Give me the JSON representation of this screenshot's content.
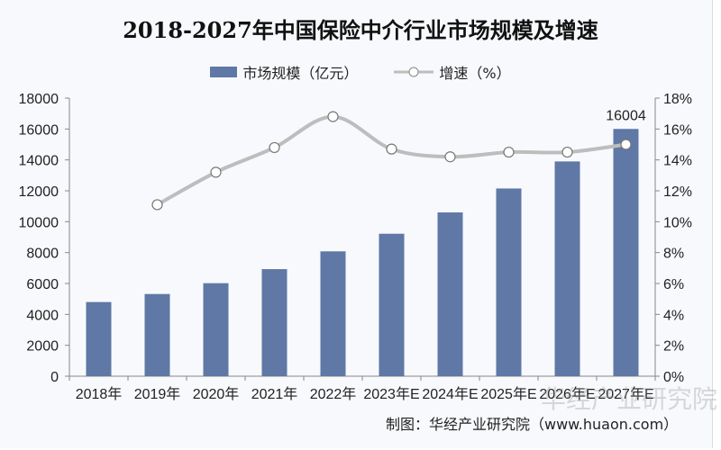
{
  "chart_data": {
    "type": "bar+line",
    "title": "2018-2027年中国保险中介行业市场规模及增速",
    "categories": [
      "2018年",
      "2019年",
      "2020年",
      "2021年",
      "2022年",
      "2023年E",
      "2024年E",
      "2025年E",
      "2026年E",
      "2027年E"
    ],
    "series": [
      {
        "name": "市场规模（亿元）",
        "type": "bar",
        "axis": "left",
        "color": "#5f78a5",
        "values": [
          4800,
          5320,
          6020,
          6930,
          8080,
          9220,
          10600,
          12150,
          13900,
          16004
        ]
      },
      {
        "name": "增速（%）",
        "type": "line",
        "axis": "right",
        "color": "#bdbdbd",
        "values": [
          null,
          11.1,
          13.2,
          14.8,
          16.8,
          14.7,
          14.2,
          14.5,
          14.5,
          15.0
        ]
      }
    ],
    "data_labels": [
      {
        "category": "2027年E",
        "text": "16004"
      }
    ],
    "y_left": {
      "range": [
        0,
        18000
      ],
      "ticks": [
        "0",
        "2000",
        "4000",
        "6000",
        "8000",
        "10000",
        "12000",
        "14000",
        "16000",
        "18000"
      ]
    },
    "y_right": {
      "range": [
        0,
        18
      ],
      "ticks": [
        "0%",
        "2%",
        "4%",
        "6%",
        "8%",
        "10%",
        "12%",
        "14%",
        "16%",
        "18%"
      ]
    },
    "legend": "top-center",
    "grid": false
  },
  "source": "制图：华经产业研究院（www.huaon.com）",
  "watermark": "华经产业研究院"
}
